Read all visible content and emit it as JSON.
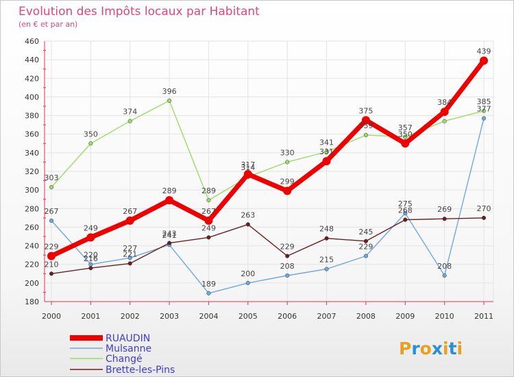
{
  "chart_data": {
    "type": "line",
    "title": "Evolution des Impôts locaux par Habitant",
    "subtitle": "(en € et par an)",
    "xlabel": "",
    "ylabel": "",
    "x": [
      "2000",
      "2001",
      "2002",
      "2003",
      "2004",
      "2005",
      "2006",
      "2007",
      "2008",
      "2009",
      "2010",
      "2011"
    ],
    "ylim": [
      180,
      460
    ],
    "yticks": [
      180,
      200,
      220,
      240,
      260,
      280,
      300,
      320,
      340,
      360,
      380,
      400,
      420,
      440,
      460
    ],
    "grid": true,
    "legend_position": "bottom-left",
    "series": [
      {
        "name": "RUAUDIN",
        "color": "#ee0000",
        "values": [
          229,
          249,
          267,
          289,
          267,
          317,
          299,
          331,
          375,
          350,
          384,
          439
        ],
        "labels": [
          "229",
          "249",
          "267",
          "289",
          "267",
          "317",
          "299",
          "331",
          "375",
          "350",
          "384",
          "439"
        ]
      },
      {
        "name": "Mulsanne",
        "color": "#6fa8dc",
        "values": [
          267,
          220,
          227,
          241,
          189,
          200,
          208,
          215,
          229,
          275,
          208,
          377
        ],
        "labels": [
          "267",
          "220",
          "227",
          "241",
          "189",
          "200",
          "208",
          "215",
          "229",
          "275",
          "208",
          "377"
        ]
      },
      {
        "name": "Changé",
        "color": "#99dd66",
        "values": [
          303,
          350,
          374,
          396,
          289,
          314,
          330,
          341,
          359,
          357,
          374,
          385
        ],
        "labels": [
          "303",
          "350",
          "374",
          "396",
          "289",
          "314",
          "330",
          "341",
          "359",
          "357",
          "",
          "385"
        ]
      },
      {
        "name": "Brette-les-Pins",
        "color": "#6b1f1f",
        "values": [
          210,
          216,
          221,
          243,
          249,
          263,
          229,
          248,
          245,
          268,
          269,
          270
        ],
        "labels": [
          "210",
          "216",
          "221",
          "243",
          "249",
          "263",
          "229",
          "248",
          "245",
          "268",
          "269",
          "270"
        ]
      }
    ]
  },
  "logo": {
    "text": "Proxiti",
    "letters": [
      "P",
      "r",
      "o",
      "x",
      "i",
      "t",
      "i"
    ],
    "colors": [
      "#e8a020",
      "#2a8fd6",
      "#e8a020",
      "#2a8fd6",
      "#e8a020",
      "#2a8fd6",
      "#e8a020"
    ]
  }
}
